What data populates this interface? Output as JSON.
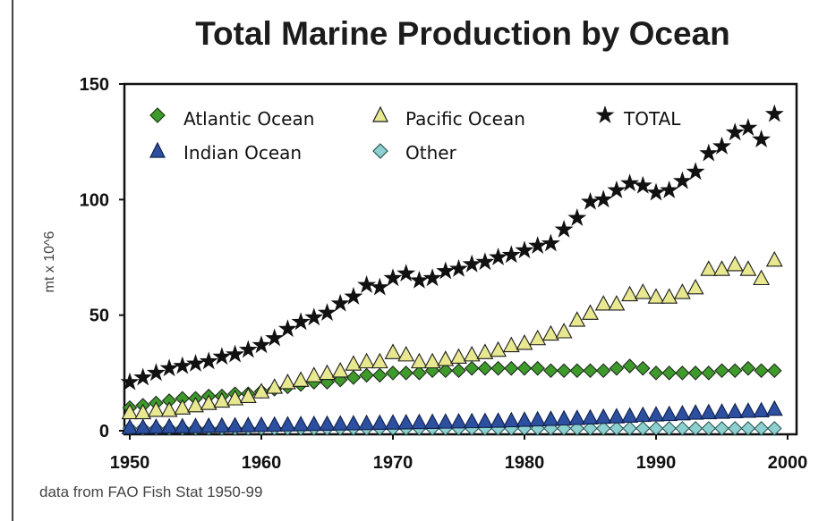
{
  "chart_data": {
    "type": "line",
    "title": "Total Marine Production by Ocean",
    "ylabel": "mt x 10^6",
    "xlabel": "",
    "xlim": [
      1950,
      2000
    ],
    "ylim": [
      0,
      150
    ],
    "xticks": [
      "1950",
      "1960",
      "1970",
      "1980",
      "1990",
      "2000"
    ],
    "yticks": [
      "0",
      "50",
      "100",
      "150"
    ],
    "grid": false,
    "legend_position": "top-left, inside",
    "source_note": "data from FAO Fish Stat  1950-99",
    "x": [
      1950,
      1951,
      1952,
      1953,
      1954,
      1955,
      1956,
      1957,
      1958,
      1959,
      1960,
      1961,
      1962,
      1963,
      1964,
      1965,
      1966,
      1967,
      1968,
      1969,
      1970,
      1971,
      1972,
      1973,
      1974,
      1975,
      1976,
      1977,
      1978,
      1979,
      1980,
      1981,
      1982,
      1983,
      1984,
      1985,
      1986,
      1987,
      1988,
      1989,
      1990,
      1991,
      1992,
      1993,
      1994,
      1995,
      1996,
      1997,
      1998,
      1999
    ],
    "series": [
      {
        "name": "Atlantic Ocean",
        "marker": "diamond",
        "color": "#3f9a2c",
        "values": [
          10,
          11,
          12,
          13,
          14,
          14,
          15,
          15,
          16,
          16,
          17,
          18,
          19,
          20,
          21,
          21,
          22,
          23,
          24,
          24,
          25,
          25,
          25,
          26,
          26,
          26,
          27,
          27,
          27,
          27,
          27,
          27,
          26,
          26,
          26,
          26,
          26,
          27,
          28,
          27,
          25,
          25,
          25,
          25,
          25,
          26,
          26,
          27,
          26,
          26
        ]
      },
      {
        "name": "Pacific Ocean",
        "marker": "triangle",
        "color": "#e8e890",
        "values": [
          8,
          8,
          9,
          9,
          10,
          11,
          12,
          13,
          14,
          15,
          17,
          19,
          21,
          22,
          24,
          25,
          26,
          29,
          30,
          30,
          34,
          33,
          30,
          30,
          31,
          32,
          33,
          34,
          35,
          37,
          38,
          40,
          42,
          43,
          48,
          51,
          55,
          55,
          59,
          60,
          58,
          58,
          60,
          62,
          70,
          70,
          72,
          70,
          66,
          74
        ]
      },
      {
        "name": "TOTAL",
        "marker": "star",
        "color": "#111111",
        "values": [
          21,
          23,
          25,
          27,
          28,
          29,
          30,
          32,
          33,
          35,
          37,
          40,
          44,
          47,
          49,
          51,
          55,
          58,
          63,
          62,
          66,
          68,
          65,
          66,
          69,
          70,
          72,
          73,
          75,
          76,
          78,
          80,
          81,
          87,
          92,
          99,
          100,
          104,
          107,
          106,
          103,
          104,
          108,
          112,
          120,
          123,
          129,
          131,
          126,
          137
        ]
      },
      {
        "name": "Indian Ocean",
        "marker": "triangle",
        "color": "#2c4fa0",
        "values": [
          1.5,
          1.6,
          1.7,
          1.8,
          1.9,
          2.0,
          2.1,
          2.2,
          2.3,
          2.4,
          2.5,
          2.6,
          2.7,
          2.8,
          2.9,
          3.0,
          3.1,
          3.2,
          3.3,
          3.4,
          3.5,
          3.6,
          3.7,
          3.8,
          3.9,
          4.0,
          4.1,
          4.2,
          4.3,
          4.5,
          4.7,
          4.9,
          5.1,
          5.3,
          5.5,
          5.7,
          6.0,
          6.2,
          6.5,
          6.8,
          7.0,
          7.2,
          7.5,
          7.8,
          8.0,
          8.2,
          8.4,
          8.6,
          8.8,
          9.5
        ]
      },
      {
        "name": "Other",
        "marker": "diamond",
        "color": "#8ed0d0",
        "values": [
          1,
          1,
          1,
          1,
          1,
          1,
          1,
          1,
          1,
          1,
          1,
          1,
          1,
          1,
          1,
          1,
          1,
          1,
          1,
          1,
          1,
          1,
          1,
          1,
          1,
          1,
          1,
          1,
          1,
          1,
          1,
          1,
          1,
          1,
          1,
          1,
          1,
          1,
          1,
          1,
          1,
          1,
          1,
          1,
          1,
          1,
          1,
          1,
          1,
          1
        ]
      }
    ]
  }
}
